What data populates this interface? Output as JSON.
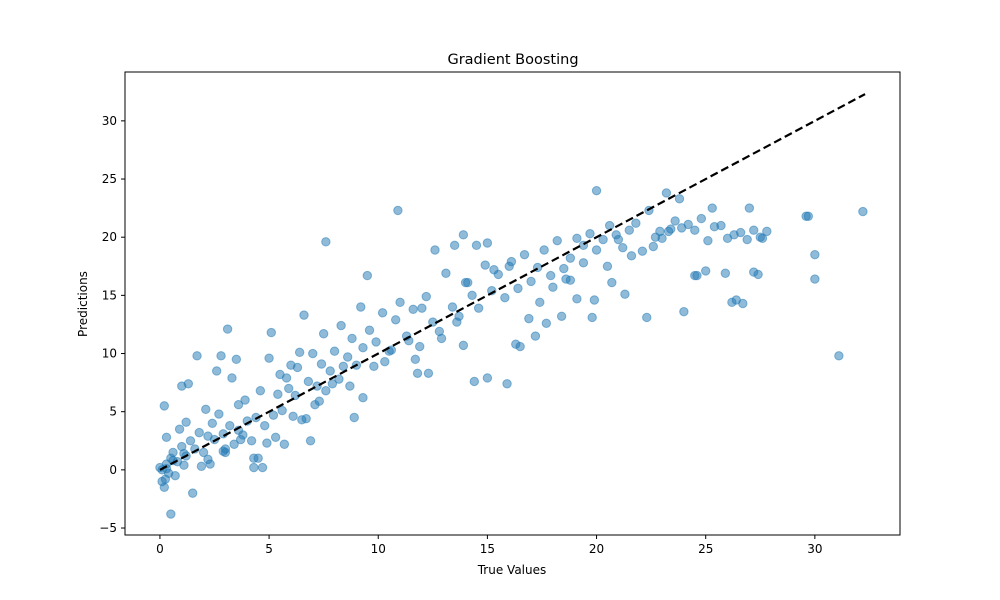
{
  "chart_data": {
    "type": "scatter",
    "title": "Gradient Boosting",
    "xlabel": "True Values",
    "ylabel": "Predictions",
    "xlim": [
      -1.6,
      33.9
    ],
    "ylim": [
      -5.6,
      34.2
    ],
    "xticks": [
      0,
      5,
      10,
      15,
      20,
      25,
      30
    ],
    "yticks": [
      -5,
      0,
      5,
      10,
      15,
      20,
      25,
      30
    ],
    "xtick_labels": [
      "0",
      "5",
      "10",
      "15",
      "20",
      "25",
      "30"
    ],
    "ytick_labels": [
      "−5",
      "0",
      "5",
      "10",
      "15",
      "20",
      "25",
      "30"
    ],
    "grid": false,
    "legend": "none",
    "colors": {
      "points": "#1f77b4",
      "reference_line": "#000000"
    },
    "reference_line": {
      "style": "dashed",
      "x": [
        0,
        32.3
      ],
      "y": [
        0,
        32.3
      ]
    },
    "points": {
      "x": [
        0.2,
        0.1,
        0.0,
        0.3,
        0.5,
        0.4,
        0.6,
        0.8,
        1.0,
        1.2,
        0.3,
        0.7,
        0.9,
        1.1,
        0.2,
        0.5,
        1.4,
        1.6,
        1.8,
        2.0,
        2.2,
        2.4,
        1.3,
        1.7,
        2.1,
        2.5,
        2.7,
        2.9,
        3.0,
        3.2,
        3.4,
        3.6,
        3.8,
        4.0,
        2.6,
        3.1,
        3.5,
        3.9,
        4.2,
        4.4,
        4.6,
        4.8,
        5.0,
        5.2,
        5.4,
        5.6,
        5.8,
        6.0,
        6.2,
        6.4,
        4.3,
        4.7,
        5.1,
        5.5,
        5.9,
        6.3,
        6.6,
        6.8,
        7.0,
        7.2,
        7.4,
        7.6,
        7.8,
        8.0,
        8.2,
        8.4,
        6.7,
        7.1,
        7.5,
        7.9,
        8.3,
        8.6,
        8.8,
        9.0,
        9.3,
        9.6,
        9.9,
        10.2,
        10.5,
        10.8,
        11.0,
        11.3,
        11.6,
        11.9,
        12.2,
        12.5,
        12.8,
        13.1,
        13.4,
        13.7,
        14.0,
        14.3,
        14.6,
        14.9,
        15.2,
        15.5,
        15.8,
        16.1,
        16.4,
        16.7,
        17.0,
        17.3,
        17.6,
        17.9,
        18.2,
        18.5,
        18.8,
        19.1,
        19.4,
        19.7,
        20.0,
        20.3,
        20.6,
        20.9,
        21.2,
        21.5,
        21.8,
        22.1,
        22.4,
        22.7,
        23.0,
        23.3,
        23.6,
        23.9,
        24.2,
        24.5,
        24.8,
        25.1,
        25.4,
        25.7,
        26.0,
        26.3,
        26.6,
        26.9,
        27.2,
        27.5,
        27.8,
        0.1,
        0.25,
        1.5,
        1.0,
        1.2,
        2.8,
        3.3,
        4.9,
        4.3,
        3.0,
        2.2,
        3.6,
        5.3,
        6.1,
        6.9,
        7.6,
        9.2,
        9.5,
        10.9,
        10.3,
        11.8,
        12.6,
        13.5,
        13.9,
        14.4,
        15.0,
        15.9,
        16.3,
        17.2,
        17.7,
        18.4,
        19.1,
        19.8,
        20.0,
        20.5,
        21.3,
        22.3,
        22.6,
        23.2,
        24.0,
        24.5,
        25.3,
        26.2,
        26.4,
        27.2,
        27.4,
        29.6,
        29.7,
        30.0,
        30.0,
        31.1,
        32.2,
        8.9,
        9.3,
        0.3,
        13.6,
        15.0,
        16.0,
        11.7,
        12.3,
        13.9,
        16.5,
        14.1,
        14.5,
        15.3,
        16.9,
        18.0,
        18.8,
        19.4,
        19.9,
        20.7,
        21.0,
        21.6,
        22.9,
        23.4,
        23.8,
        24.6,
        25.0,
        25.9,
        26.7,
        27.0,
        27.6,
        17.4,
        18.6,
        12.0,
        12.9,
        11.4,
        10.6,
        9.8,
        8.7,
        7.3,
        6.5,
        5.7,
        4.5,
        3.7,
        2.9,
        2.3,
        1.9,
        1.1,
        0.6
      ],
      "y": [
        -1.5,
        -1.0,
        0.2,
        0.5,
        1.0,
        -0.3,
        1.5,
        0.7,
        2.0,
        1.2,
        2.8,
        -0.5,
        3.5,
        0.4,
        5.5,
        -3.8,
        2.5,
        1.8,
        3.2,
        1.5,
        2.9,
        4.0,
        7.4,
        9.8,
        5.2,
        2.6,
        4.8,
        3.1,
        1.5,
        3.8,
        2.2,
        5.6,
        3.0,
        4.2,
        8.5,
        12.1,
        9.5,
        6.0,
        2.5,
        4.5,
        6.8,
        3.8,
        9.6,
        4.7,
        6.5,
        5.1,
        7.9,
        9.0,
        6.4,
        10.1,
        1.0,
        0.2,
        11.8,
        8.2,
        7.0,
        8.8,
        13.3,
        7.6,
        10.0,
        7.2,
        9.1,
        6.8,
        8.5,
        10.2,
        7.8,
        8.9,
        4.4,
        5.6,
        11.7,
        7.4,
        12.4,
        9.7,
        11.3,
        9.0,
        10.5,
        12.0,
        11.0,
        13.5,
        10.2,
        12.9,
        14.4,
        11.5,
        13.8,
        10.6,
        14.9,
        12.7,
        11.9,
        16.9,
        14.0,
        13.2,
        16.1,
        15.0,
        13.9,
        17.6,
        15.4,
        16.8,
        14.8,
        17.9,
        15.6,
        18.5,
        16.2,
        17.4,
        18.9,
        16.7,
        19.7,
        17.3,
        18.2,
        19.9,
        17.8,
        20.3,
        18.9,
        19.8,
        21.0,
        20.2,
        19.1,
        20.6,
        21.2,
        18.8,
        22.3,
        20.0,
        19.9,
        20.5,
        21.4,
        20.8,
        21.1,
        20.6,
        21.6,
        19.7,
        20.9,
        21.0,
        19.9,
        20.2,
        20.4,
        19.8,
        20.6,
        20.0,
        20.5,
        0.0,
        -0.8,
        -2.0,
        7.2,
        4.1,
        9.8,
        7.9,
        2.3,
        0.2,
        1.8,
        0.9,
        3.4,
        2.8,
        4.6,
        2.5,
        19.6,
        14.0,
        16.7,
        22.3,
        9.3,
        8.3,
        18.9,
        19.3,
        20.2,
        7.6,
        7.9,
        7.4,
        10.8,
        11.5,
        12.6,
        13.2,
        14.7,
        13.1,
        24.0,
        17.5,
        15.1,
        13.1,
        19.2,
        23.8,
        13.6,
        16.7,
        22.5,
        14.4,
        14.6,
        17.0,
        16.8,
        21.8,
        21.8,
        18.5,
        16.4,
        9.8,
        22.2,
        4.5,
        6.2,
        0.1,
        12.7,
        19.5,
        17.5,
        9.5,
        8.3,
        10.7,
        10.6,
        16.1,
        19.3,
        17.2,
        13.0,
        15.7,
        16.3,
        19.3,
        14.6,
        16.1,
        19.8,
        18.4,
        20.5,
        20.7,
        23.3,
        16.7,
        17.1,
        16.9,
        14.3,
        22.5,
        19.9,
        14.4,
        16.4,
        13.9,
        11.3,
        11.1,
        10.3,
        8.9,
        7.2,
        5.9,
        4.3,
        2.2,
        1.0,
        2.6,
        1.6,
        0.5,
        0.3,
        1.4,
        0.8
      ]
    }
  }
}
